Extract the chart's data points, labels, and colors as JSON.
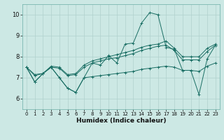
{
  "xlabel": "Humidex (Indice chaleur)",
  "xlim": [
    -0.5,
    23.5
  ],
  "ylim": [
    5.5,
    10.5
  ],
  "yticks": [
    6,
    7,
    8,
    9,
    10
  ],
  "xticks": [
    0,
    1,
    2,
    3,
    4,
    5,
    6,
    7,
    8,
    9,
    10,
    11,
    12,
    13,
    14,
    15,
    16,
    17,
    18,
    19,
    20,
    21,
    22,
    23
  ],
  "bg_color": "#cce8e4",
  "line_color": "#1a6e64",
  "grid_color": "#b0d0cc",
  "series1": [
    7.5,
    6.8,
    7.2,
    7.5,
    7.0,
    6.5,
    6.3,
    7.0,
    7.7,
    7.6,
    8.05,
    7.7,
    8.6,
    8.65,
    9.6,
    10.1,
    10.0,
    8.45,
    8.35,
    7.35,
    7.35,
    6.2,
    7.9,
    8.55
  ],
  "series2": [
    7.5,
    7.15,
    7.2,
    7.55,
    7.5,
    7.15,
    7.2,
    7.6,
    7.8,
    7.9,
    8.0,
    8.1,
    8.2,
    8.3,
    8.45,
    8.55,
    8.6,
    8.75,
    8.4,
    8.0,
    8.0,
    8.0,
    8.4,
    8.6
  ],
  "series3": [
    7.5,
    7.1,
    7.2,
    7.5,
    7.45,
    7.1,
    7.15,
    7.5,
    7.7,
    7.8,
    7.9,
    7.95,
    8.05,
    8.15,
    8.3,
    8.4,
    8.5,
    8.55,
    8.3,
    7.85,
    7.85,
    7.85,
    8.25,
    8.55
  ],
  "series4": [
    7.5,
    6.8,
    7.2,
    7.5,
    7.0,
    6.5,
    6.3,
    7.0,
    7.05,
    7.1,
    7.15,
    7.2,
    7.25,
    7.3,
    7.4,
    7.45,
    7.5,
    7.55,
    7.5,
    7.35,
    7.35,
    7.3,
    7.55,
    7.7
  ]
}
